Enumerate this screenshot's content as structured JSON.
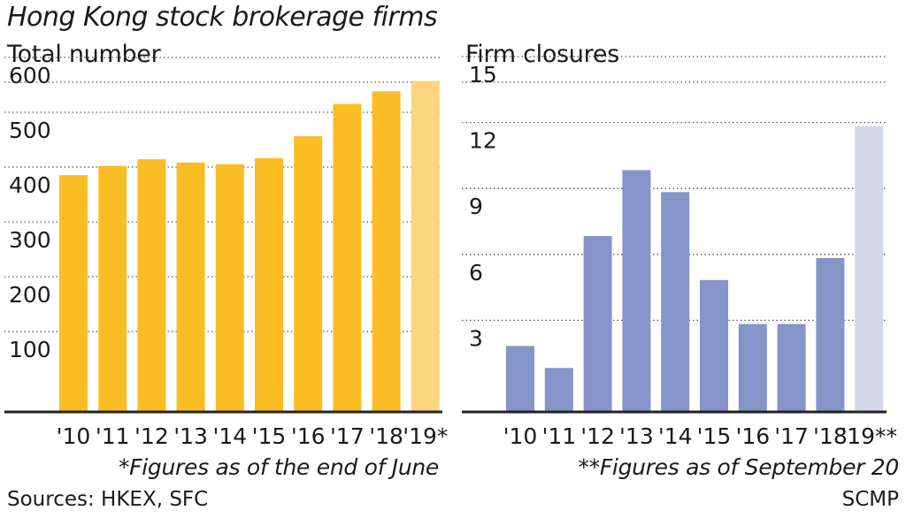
{
  "title": "Hong Kong stock brokerage firms",
  "chart_data": [
    {
      "type": "bar",
      "title": "Total number",
      "categories": [
        "'10",
        "'11",
        "'12",
        "'13",
        "'14",
        "'15",
        "'16",
        "'17",
        "'18",
        "'19*"
      ],
      "values": [
        432,
        449,
        461,
        455,
        452,
        463,
        503,
        562,
        585,
        604
      ],
      "ylim": [
        0,
        620
      ],
      "yticks": [
        100,
        200,
        300,
        400,
        500,
        600
      ],
      "grid": true,
      "bar_color": "#fbbd24",
      "highlight_color": "#fdd57e",
      "footnote": "*Figures as of the end of June"
    },
    {
      "type": "bar",
      "title": "Firm closures",
      "categories": [
        "'10",
        "'11",
        "'12",
        "'13",
        "'14",
        "'15",
        "'16",
        "'17",
        "'18",
        "'19**"
      ],
      "values": [
        3,
        2,
        8,
        11,
        10,
        6,
        4,
        4,
        7,
        13
      ],
      "ylim": [
        0,
        15
      ],
      "yticks": [
        3,
        6,
        9,
        12,
        15
      ],
      "grid": true,
      "bar_color": "#8594c9",
      "highlight_color": "#d3d7ec",
      "footnote": "**Figures as of September 20"
    }
  ],
  "sources": "Sources: HKEX, SFC",
  "credit": "SCMP"
}
